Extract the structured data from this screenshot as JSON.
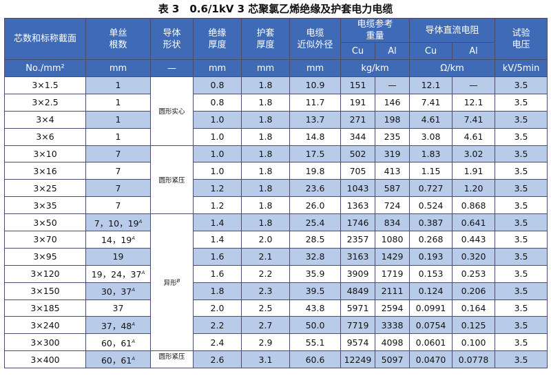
{
  "title": "表 3　0.6/1kV 3 芯聚氯乙烯绝缘及护套电力电缆",
  "header": {
    "col_section": "芯数和标称截面",
    "col_strands": "单丝\n根数",
    "col_shape": "导体\n形状",
    "col_ins": "绝缘\n厚度",
    "col_sheath": "护套\n厚度",
    "col_od": "电缆\n近似外径",
    "col_weight": "电缆参考\n重量",
    "col_resist": "导体直流电阻",
    "col_test": "试验\n电压",
    "sub_cu": "Cu",
    "sub_al": "Al",
    "unit_section": "No./mm²",
    "unit_strands": "mm",
    "unit_shape": "—",
    "unit_ins": "mm",
    "unit_sheath": "mm",
    "unit_od": "mm",
    "unit_weight": "kg/km",
    "unit_resist": "Ω/km",
    "unit_test": "kV/5min"
  },
  "shapes": {
    "solid": "圆形实心",
    "round_compact": "圆形紧压",
    "sector": "异形",
    "sector_sup": "B",
    "round_compact_last": "圆形紧压"
  },
  "rows": [
    {
      "section": "3×1.5",
      "strands": "1",
      "sup": "",
      "ins": "0.8",
      "sheath": "1.8",
      "od": "10.9",
      "wcu": "151",
      "wal": "—",
      "rcu": "12.1",
      "ral": "—",
      "test": "3.5"
    },
    {
      "section": "3×2.5",
      "strands": "1",
      "sup": "",
      "ins": "0.8",
      "sheath": "1.8",
      "od": "11.7",
      "wcu": "191",
      "wal": "146",
      "rcu": "7.41",
      "ral": "12.1",
      "test": "3.5"
    },
    {
      "section": "3×4",
      "strands": "1",
      "sup": "",
      "ins": "1.0",
      "sheath": "1.8",
      "od": "13.7",
      "wcu": "271",
      "wal": "198",
      "rcu": "4.61",
      "ral": "7.41",
      "test": "3.5"
    },
    {
      "section": "3×6",
      "strands": "1",
      "sup": "",
      "ins": "1.0",
      "sheath": "1.8",
      "od": "14.8",
      "wcu": "344",
      "wal": "235",
      "rcu": "3.08",
      "ral": "4.61",
      "test": "3.5"
    },
    {
      "section": "3×10",
      "strands": "7",
      "sup": "",
      "ins": "1.0",
      "sheath": "1.8",
      "od": "17.5",
      "wcu": "502",
      "wal": "319",
      "rcu": "1.83",
      "ral": "3.02",
      "test": "3.5"
    },
    {
      "section": "3×16",
      "strands": "7",
      "sup": "",
      "ins": "1.0",
      "sheath": "1.8",
      "od": "19.8",
      "wcu": "705",
      "wal": "413",
      "rcu": "1.15",
      "ral": "1.91",
      "test": "3.5"
    },
    {
      "section": "3×25",
      "strands": "7",
      "sup": "",
      "ins": "1.2",
      "sheath": "1.8",
      "od": "23.6",
      "wcu": "1043",
      "wal": "587",
      "rcu": "0.727",
      "ral": "1.20",
      "test": "3.5"
    },
    {
      "section": "3×35",
      "strands": "7",
      "sup": "",
      "ins": "1.2",
      "sheath": "1.8",
      "od": "26.0",
      "wcu": "1363",
      "wal": "724",
      "rcu": "0.524",
      "ral": "0.868",
      "test": "3.5"
    },
    {
      "section": "3×50",
      "strands": "7，10，19",
      "sup": "A",
      "ins": "1.4",
      "sheath": "1.8",
      "od": "25.4",
      "wcu": "1746",
      "wal": "834",
      "rcu": "0.387",
      "ral": "0.641",
      "test": "3.5"
    },
    {
      "section": "3×70",
      "strands": "14，19",
      "sup": "A",
      "ins": "1.4",
      "sheath": "2.0",
      "od": "28.5",
      "wcu": "2357",
      "wal": "1080",
      "rcu": "0.268",
      "ral": "0.443",
      "test": "3.5"
    },
    {
      "section": "3×95",
      "strands": "19",
      "sup": "",
      "ins": "1.6",
      "sheath": "2.1",
      "od": "32.8",
      "wcu": "3163",
      "wal": "1429",
      "rcu": "0.193",
      "ral": "0.320",
      "test": "3.5"
    },
    {
      "section": "3×120",
      "strands": "19，24，37",
      "sup": "A",
      "ins": "1.6",
      "sheath": "2.2",
      "od": "35.9",
      "wcu": "3909",
      "wal": "1719",
      "rcu": "0.153",
      "ral": "0.253",
      "test": "3.5"
    },
    {
      "section": "3×150",
      "strands": "30，37",
      "sup": "A",
      "ins": "1.8",
      "sheath": "2.3",
      "od": "39.5",
      "wcu": "4849",
      "wal": "2111",
      "rcu": "0.124",
      "ral": "0.206",
      "test": "3.5"
    },
    {
      "section": "3×185",
      "strands": "37",
      "sup": "",
      "ins": "2.0",
      "sheath": "2.5",
      "od": "43.8",
      "wcu": "5971",
      "wal": "2594",
      "rcu": "0.0991",
      "ral": "0.164",
      "test": "3.5"
    },
    {
      "section": "3×240",
      "strands": "37，48",
      "sup": "A",
      "ins": "2.2",
      "sheath": "2.7",
      "od": "50.0",
      "wcu": "7719",
      "wal": "3338",
      "rcu": "0.0754",
      "ral": "0.125",
      "test": "3.5"
    },
    {
      "section": "3×300",
      "strands": "60，61",
      "sup": "A",
      "ins": "2.4",
      "sheath": "2.9",
      "od": "55.1",
      "wcu": "9574",
      "wal": "4098",
      "rcu": "0.0601",
      "ral": "0.100",
      "test": "3.5"
    },
    {
      "section": "3×400",
      "strands": "60，61",
      "sup": "A",
      "ins": "2.6",
      "sheath": "3.1",
      "od": "60.6",
      "wcu": "12249",
      "wal": "5097",
      "rcu": "0.0470",
      "ral": "0.0778",
      "test": "3.5"
    }
  ]
}
